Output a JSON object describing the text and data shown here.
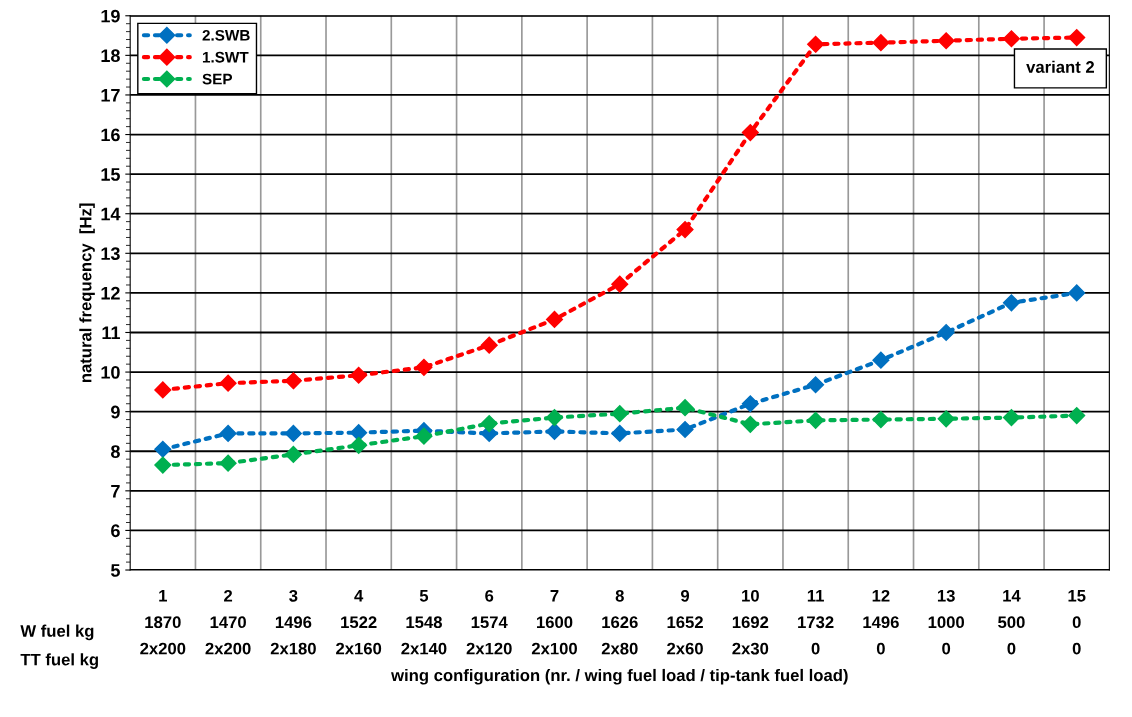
{
  "chart_data": {
    "type": "line",
    "xlabel": "wing configuration (nr. / wing fuel load / tip-tank fuel load)",
    "ylabel": "natural frequency  [Hz]",
    "categories": [
      "1\n1870\n2x200",
      "2\n1470\n2x200",
      "3\n1496\n2x180",
      "4\n1522\n2x160",
      "5\n1548\n2x140",
      "6\n1574\n2x120",
      "7\n1600\n2x100",
      "8\n1626\n2x80",
      "9\n1652\n2x60",
      "10\n1692\n2x30",
      "11\n1732\n0",
      "12\n1496\n0",
      "13\n1000\n0",
      "14\n500\n0",
      "15\n0\n0"
    ],
    "series": [
      {
        "name": "2.SWB",
        "color": "#0070c0",
        "values": [
          8.05,
          8.45,
          8.45,
          8.47,
          8.52,
          8.45,
          8.5,
          8.45,
          8.55,
          9.2,
          9.68,
          10.3,
          11.0,
          11.75,
          12.0
        ]
      },
      {
        "name": "1.SWT",
        "color": "#ff0000",
        "values": [
          9.55,
          9.72,
          9.78,
          9.92,
          10.12,
          10.68,
          11.33,
          12.22,
          13.6,
          16.05,
          18.28,
          18.32,
          18.37,
          18.42,
          18.45
        ]
      },
      {
        "name": "SEP",
        "color": "#00b050",
        "values": [
          7.65,
          7.7,
          7.92,
          8.15,
          8.38,
          8.7,
          8.85,
          8.95,
          9.1,
          8.68,
          8.78,
          8.8,
          8.82,
          8.85,
          8.9
        ]
      }
    ],
    "ylim": [
      5,
      19
    ],
    "yticks": [
      5,
      6,
      7,
      8,
      9,
      10,
      11,
      12,
      13,
      14,
      15,
      16,
      17,
      18,
      19
    ],
    "annotations": [
      "variant 2",
      "W fuel kg",
      "TT fuel kg"
    ],
    "grid": true,
    "legend": "top left",
    "marker": "diamond",
    "line_style": "dotted"
  }
}
